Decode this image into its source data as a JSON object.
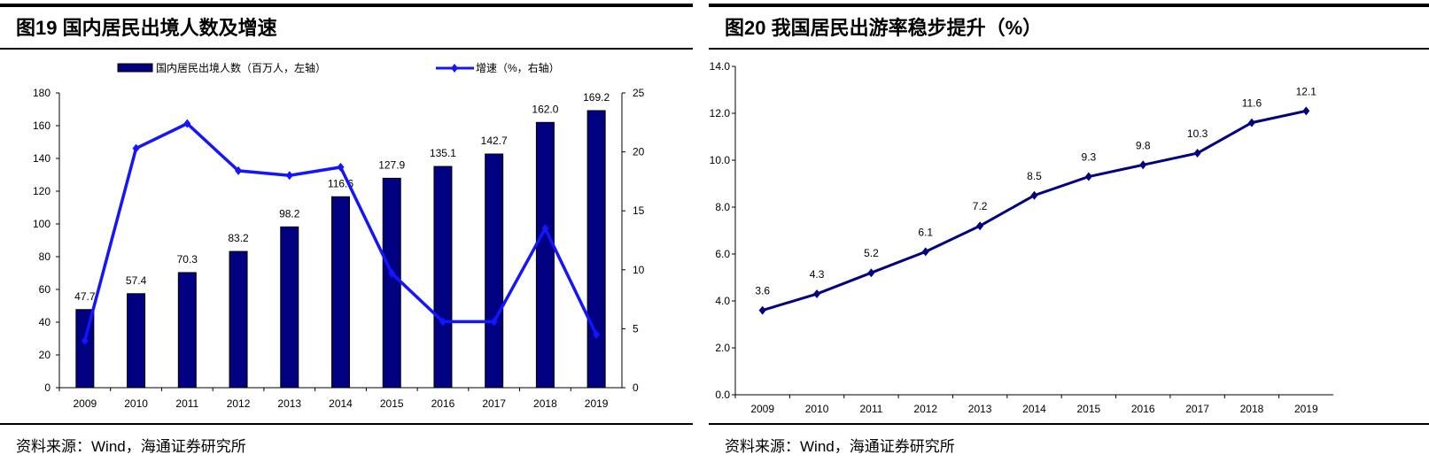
{
  "left": {
    "title": "图19 国内居民出境人数及增速",
    "source": "资料来源：Wind，海通证券研究所"
  },
  "right": {
    "title": "图20 我国居民出游率稳步提升（%）",
    "source": "资料来源：Wind，海通证券研究所"
  },
  "chart_data": [
    {
      "type": "bar+line",
      "categories": [
        "2009",
        "2010",
        "2011",
        "2012",
        "2013",
        "2014",
        "2015",
        "2016",
        "2017",
        "2018",
        "2019"
      ],
      "series": [
        {
          "name": "国内居民出境人数（百万人，左轴）",
          "type": "bar",
          "axis": "left",
          "color": "#000080",
          "values": [
            47.7,
            57.4,
            70.3,
            83.2,
            98.2,
            116.6,
            127.9,
            135.1,
            142.7,
            162.0,
            169.2
          ],
          "labels": [
            "47.7",
            "57.4",
            "70.3",
            "83.2",
            "98.2",
            "116.6",
            "127.9",
            "135.1",
            "142.7",
            "162.0",
            "169.2"
          ]
        },
        {
          "name": "增速（%，右轴）",
          "type": "line",
          "axis": "right",
          "color": "#1414FF",
          "values": [
            4.0,
            20.3,
            22.4,
            18.4,
            18.0,
            18.7,
            9.7,
            5.6,
            5.6,
            13.5,
            4.5
          ]
        }
      ],
      "ylim_left": [
        0,
        180
      ],
      "yticks_left": [
        "0",
        "20",
        "40",
        "60",
        "80",
        "100",
        "120",
        "140",
        "160",
        "180"
      ],
      "ylim_right": [
        0,
        25
      ],
      "yticks_right": [
        "0",
        "5",
        "10",
        "15",
        "20",
        "25"
      ],
      "legend": "top"
    },
    {
      "type": "line",
      "categories": [
        "2009",
        "2010",
        "2011",
        "2012",
        "2013",
        "2014",
        "2015",
        "2016",
        "2017",
        "2018",
        "2019"
      ],
      "series": [
        {
          "name": "出游率",
          "color": "#000080",
          "values": [
            3.6,
            4.3,
            5.2,
            6.1,
            7.2,
            8.5,
            9.3,
            9.8,
            10.3,
            11.6,
            12.1
          ],
          "labels": [
            "3.6",
            "4.3",
            "5.2",
            "6.1",
            "7.2",
            "8.5",
            "9.3",
            "9.8",
            "10.3",
            "11.6",
            "12.1"
          ]
        }
      ],
      "ylim": [
        0,
        14
      ],
      "yticks": [
        "0.0",
        "2.0",
        "4.0",
        "6.0",
        "8.0",
        "10.0",
        "12.0",
        "14.0"
      ]
    }
  ]
}
